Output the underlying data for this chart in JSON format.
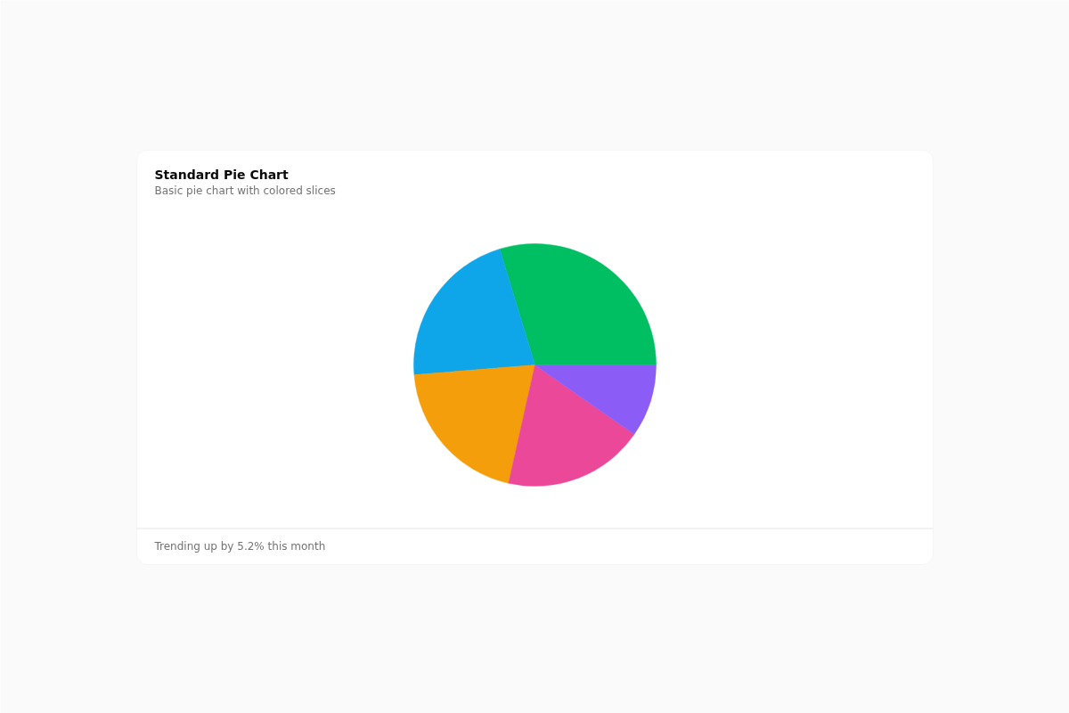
{
  "chart_data": {
    "type": "pie",
    "title": "Standard Pie Chart",
    "subtitle": "Basic pie chart with colored slices",
    "categories": [
      null,
      null,
      null,
      null,
      null
    ],
    "values": [
      29.7,
      21.6,
      20.2,
      18.8,
      9.7
    ],
    "colors": [
      "#00bf63",
      "#0ea5e9",
      "#f59e0b",
      "#ec4899",
      "#8b5cf6"
    ],
    "annotations": [
      "Trending up by 5.2% this month"
    ]
  }
}
